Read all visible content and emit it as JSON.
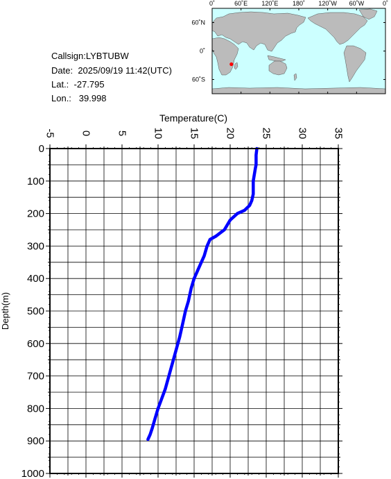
{
  "info": {
    "callsign_label": "Callsign:",
    "callsign": "LYBTUBW",
    "date_label": "Date:",
    "date": "2025/09/19 11:42(UTC)",
    "lat_label": "Lat.:",
    "lat": "-27.795",
    "lon_label": "Lon.:",
    "lon": "39.998"
  },
  "map": {
    "top_labels": [
      "0˚",
      "60˚E",
      "120˚E",
      "180˚",
      "120˚W",
      "60˚W",
      "0˚"
    ],
    "left_labels": [
      "60˚N",
      "0˚",
      "60˚S"
    ],
    "ocean_color": "#ccffff",
    "land_color": "#bbbbbb",
    "marker_color": "#ff0000",
    "marker_lat": -27.795,
    "marker_lon": 39.998
  },
  "chart_data": {
    "type": "line",
    "xlabel": "Temperature(C)",
    "ylabel": "Depth(m)",
    "xlim": [
      -5,
      35
    ],
    "ylim": [
      1000,
      0
    ],
    "x_ticks": [
      "-5",
      "0",
      "5",
      "10",
      "15",
      "20",
      "25",
      "30",
      "35"
    ],
    "y_ticks": [
      "0",
      "100",
      "200",
      "300",
      "400",
      "500",
      "600",
      "700",
      "800",
      "900",
      "1000"
    ],
    "grid": true,
    "line_color": "#0000ff",
    "series": [
      {
        "x": [
          23.7,
          23.6,
          23.6,
          23.5,
          23.2,
          23.2,
          23.0,
          22.7,
          22.0,
          21.0,
          20.0,
          19.2,
          18.6,
          18.0,
          17.2,
          16.8,
          16.4,
          16.0,
          15.6,
          15.2,
          15.0,
          14.6,
          14.2,
          13.8,
          13.4,
          13.0,
          12.5,
          12.0,
          11.5,
          11.0,
          10.5,
          10.0,
          9.6,
          9.2,
          8.9,
          8.6
        ],
        "y": [
          0,
          20,
          50,
          60,
          100,
          140,
          160,
          175,
          190,
          200,
          220,
          250,
          260,
          270,
          280,
          300,
          330,
          350,
          370,
          390,
          400,
          430,
          470,
          500,
          540,
          580,
          620,
          660,
          700,
          740,
          770,
          800,
          830,
          860,
          880,
          895
        ]
      }
    ]
  }
}
